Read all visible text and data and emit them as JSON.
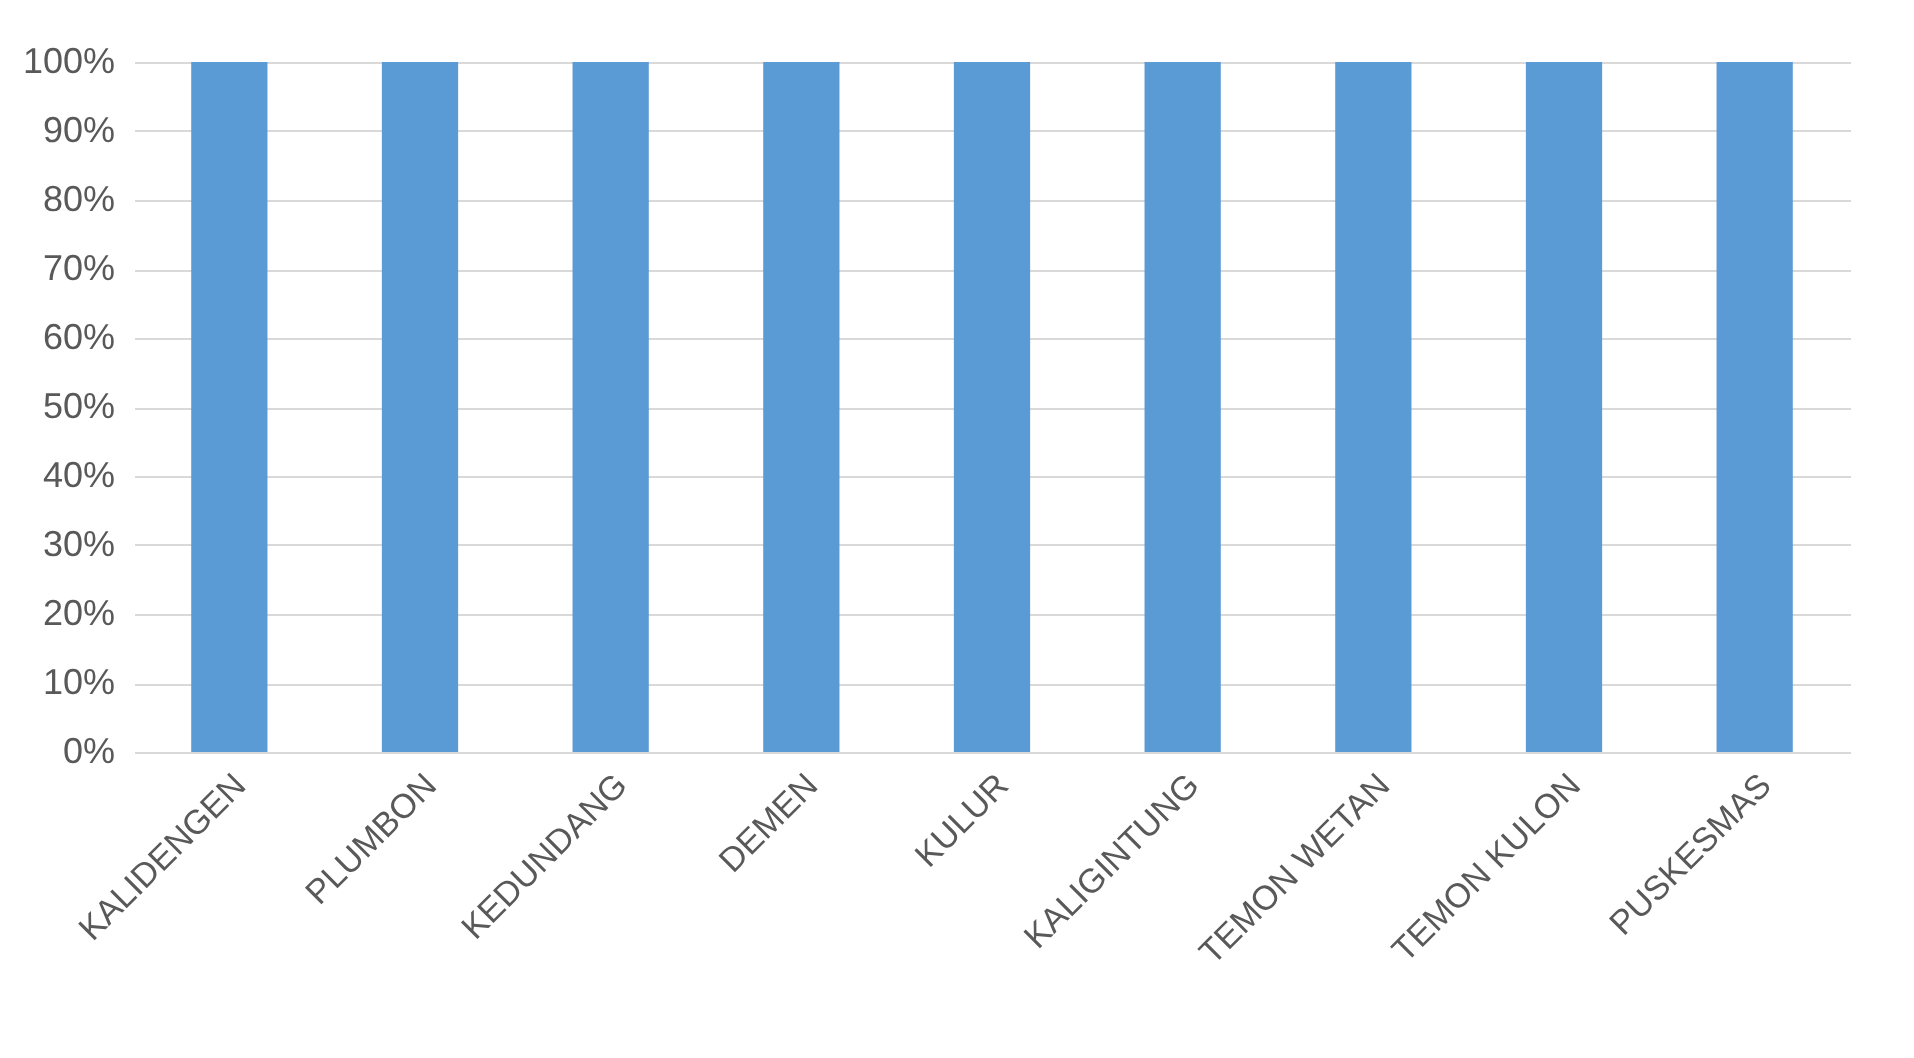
{
  "chart_data": {
    "type": "bar",
    "categories": [
      "KALIDENGEN",
      "PLUMBON",
      "KEDUNDANG",
      "DEMEN",
      "KULUR",
      "KALIGINTUNG",
      "TEMON WETAN",
      "TEMON KULON",
      "PUSKESMAS"
    ],
    "values": [
      100,
      100,
      100,
      100,
      100,
      100,
      100,
      100,
      100
    ],
    "color": "#5b9bd5",
    "ylim": [
      0,
      100
    ],
    "yticks": [
      {
        "value": 0,
        "label": "0%"
      },
      {
        "value": 10,
        "label": "10%"
      },
      {
        "value": 20,
        "label": "20%"
      },
      {
        "value": 30,
        "label": "30%"
      },
      {
        "value": 40,
        "label": "40%"
      },
      {
        "value": 50,
        "label": "50%"
      },
      {
        "value": 60,
        "label": "60%"
      },
      {
        "value": 70,
        "label": "70%"
      },
      {
        "value": 80,
        "label": "80%"
      },
      {
        "value": 90,
        "label": "90%"
      },
      {
        "value": 100,
        "label": "100%"
      }
    ],
    "grid": "y"
  }
}
